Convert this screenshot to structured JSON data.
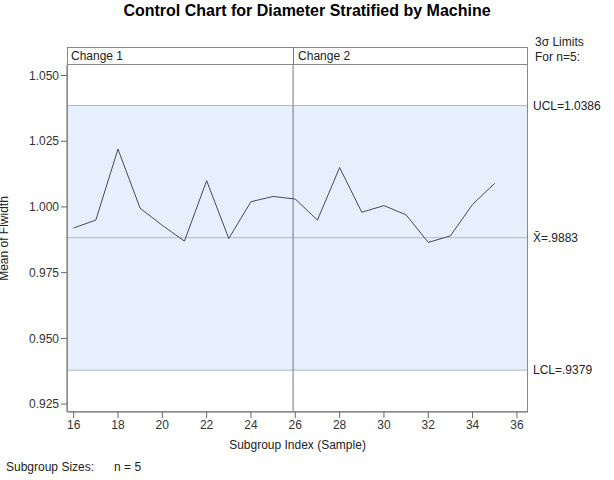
{
  "chart_data": {
    "type": "line",
    "title": "Control Chart for Diameter Stratified by Machine",
    "x_label": "Subgroup Index (Sample)",
    "y_label": "Mean of Flwidth",
    "x": [
      16,
      17,
      18,
      19,
      20,
      21,
      22,
      23,
      24,
      25,
      26,
      27,
      28,
      29,
      30,
      31,
      32,
      33,
      34,
      35
    ],
    "values": [
      0.992,
      0.995,
      1.022,
      0.9995,
      0.993,
      0.987,
      1.01,
      0.988,
      1.002,
      1.004,
      1.003,
      0.995,
      1.015,
      0.998,
      1.0005,
      0.997,
      0.9865,
      0.989,
      1.001,
      1.009
    ],
    "color": "#3a4a6a",
    "xlim": [
      15.7,
      36.5
    ],
    "xticks": [
      16,
      18,
      20,
      22,
      24,
      26,
      28,
      30,
      32,
      34,
      36
    ],
    "ylim": [
      0.922,
      1.054
    ],
    "yticks": [
      0.925,
      {
        "value": 0.95,
        "label": "0.950"
      },
      0.975,
      {
        "value": 1.0,
        "label": "1.000"
      },
      1.025,
      {
        "value": 1.05,
        "label": "1.050"
      }
    ],
    "limits_title": "3σ Limits",
    "limits_subtitle": "For n=5:",
    "ucl": {
      "value": 1.0386,
      "label": "UCL=1.0386"
    },
    "center": {
      "value": 0.9883,
      "label": "X̄=.9883"
    },
    "lcl": {
      "value": 0.9379,
      "label": "LCL=.9379"
    },
    "phases": [
      "Change 1",
      "Change 2"
    ],
    "phase_boundary": 25.9,
    "footer_label": "Subgroup Sizes:",
    "footer_value": "n = 5"
  }
}
